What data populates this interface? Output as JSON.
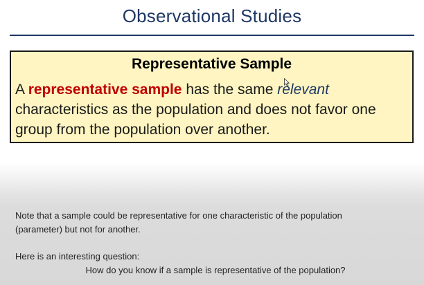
{
  "slide": {
    "title": "Observational Studies"
  },
  "definition": {
    "heading": "Representative Sample",
    "prefix": "A ",
    "term": "representative sample",
    "middle": " has the same ",
    "emphasis": "relevant",
    "suffix": " characteristics as the population and does not favor one group from the population over another."
  },
  "notes": {
    "line1": "Note that a sample could be representative for one characteristic of the population",
    "line2": "(parameter) but not for another.",
    "intro": "Here is an interesting question:",
    "question": "How do you know if a sample is representative of the population?"
  },
  "colors": {
    "title": "#1f3864",
    "box_background": "#fef5c2",
    "term": "#c00000",
    "emphasis": "#1f3864"
  },
  "icons": {
    "cursor": "mouse-pointer-icon"
  }
}
